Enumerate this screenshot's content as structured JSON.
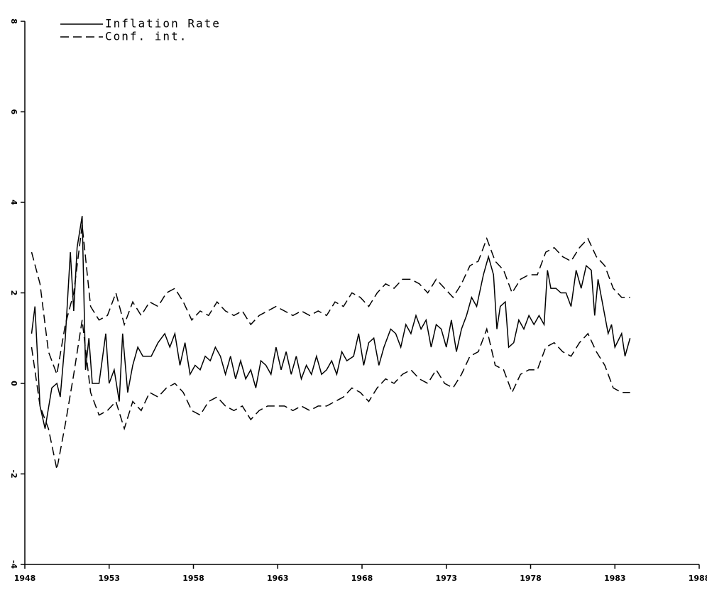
{
  "chart_data": {
    "type": "line",
    "xlim": [
      1948,
      1988
    ],
    "xticks": [
      1948,
      1953,
      1958,
      1963,
      1968,
      1973,
      1978,
      1983,
      1988
    ],
    "ylim": [
      -4,
      8
    ],
    "yticks": [
      -4,
      -2,
      0,
      2,
      4,
      6,
      8
    ],
    "legend": "top-left",
    "series": [
      {
        "name": "Inflation Rate",
        "color": "#000000",
        "line_style": "solid",
        "x": [
          1948.4,
          1948.6,
          1948.9,
          1949.2,
          1949.6,
          1949.9,
          1950.1,
          1950.4,
          1950.7,
          1950.9,
          1951.1,
          1951.4,
          1951.6,
          1951.8,
          1952.0,
          1952.4,
          1952.8,
          1953.0,
          1953.3,
          1953.6,
          1953.8,
          1954.1,
          1954.4,
          1954.7,
          1955.0,
          1955.5,
          1955.9,
          1956.3,
          1956.6,
          1956.9,
          1957.2,
          1957.5,
          1957.8,
          1958.1,
          1958.4,
          1958.7,
          1959.0,
          1959.3,
          1959.6,
          1959.9,
          1960.2,
          1960.5,
          1960.8,
          1961.1,
          1961.4,
          1961.7,
          1962.0,
          1962.3,
          1962.6,
          1962.9,
          1963.2,
          1963.5,
          1963.8,
          1964.1,
          1964.4,
          1964.7,
          1965.0,
          1965.3,
          1965.6,
          1965.9,
          1966.2,
          1966.5,
          1966.8,
          1967.1,
          1967.5,
          1967.8,
          1968.1,
          1968.4,
          1968.7,
          1969.0,
          1969.3,
          1969.7,
          1970.0,
          1970.3,
          1970.6,
          1970.9,
          1971.2,
          1971.5,
          1971.8,
          1972.1,
          1972.4,
          1972.7,
          1973.0,
          1973.3,
          1973.6,
          1973.9,
          1974.2,
          1974.5,
          1974.8,
          1975.2,
          1975.5,
          1975.8,
          1976.0,
          1976.2,
          1976.5,
          1976.7,
          1977.0,
          1977.3,
          1977.6,
          1977.9,
          1978.2,
          1978.5,
          1978.8,
          1979.0,
          1979.2,
          1979.5,
          1979.8,
          1980.1,
          1980.4,
          1980.7,
          1981.0,
          1981.3,
          1981.6,
          1981.8,
          1982.0,
          1982.3,
          1982.6,
          1982.8,
          1983.0,
          1983.4,
          1983.6,
          1983.9
        ],
        "values": [
          1.1,
          1.7,
          -0.5,
          -1.0,
          -0.1,
          0.0,
          -0.3,
          1.0,
          2.9,
          1.6,
          3.0,
          3.7,
          0.3,
          1.0,
          0.0,
          0.0,
          1.1,
          0.0,
          0.3,
          -0.4,
          1.1,
          -0.2,
          0.4,
          0.8,
          0.6,
          0.6,
          0.9,
          1.1,
          0.8,
          1.1,
          0.4,
          0.9,
          0.2,
          0.4,
          0.3,
          0.6,
          0.5,
          0.8,
          0.6,
          0.2,
          0.6,
          0.1,
          0.5,
          0.1,
          0.3,
          -0.1,
          0.5,
          0.4,
          0.2,
          0.8,
          0.3,
          0.7,
          0.2,
          0.6,
          0.1,
          0.4,
          0.2,
          0.6,
          0.2,
          0.3,
          0.5,
          0.2,
          0.7,
          0.5,
          0.6,
          1.1,
          0.4,
          0.9,
          1.0,
          0.4,
          0.8,
          1.2,
          1.1,
          0.8,
          1.3,
          1.1,
          1.5,
          1.2,
          1.4,
          0.8,
          1.3,
          1.2,
          0.8,
          1.4,
          0.7,
          1.2,
          1.5,
          1.9,
          1.7,
          2.4,
          2.8,
          2.4,
          1.2,
          1.7,
          1.8,
          0.8,
          0.9,
          1.4,
          1.2,
          1.5,
          1.3,
          1.5,
          1.3,
          2.5,
          2.1,
          2.1,
          2.0,
          2.0,
          1.7,
          2.5,
          2.1,
          2.6,
          2.5,
          1.5,
          2.3,
          1.7,
          1.1,
          1.3,
          0.8,
          1.1,
          0.6,
          1.0
        ]
      },
      {
        "name": "Conf. int.",
        "color": "#000000",
        "line_style": "dashed",
        "x": [
          1948.4,
          1948.9,
          1949.4,
          1949.9,
          1950.4,
          1950.9,
          1951.4,
          1951.9,
          1952.4,
          1952.9,
          1953.4,
          1953.9,
          1954.4,
          1954.9,
          1955.4,
          1955.9,
          1956.4,
          1956.9,
          1957.4,
          1957.9,
          1958.4,
          1958.9,
          1959.4,
          1959.9,
          1960.4,
          1960.9,
          1961.4,
          1961.9,
          1962.4,
          1962.9,
          1963.4,
          1963.9,
          1964.4,
          1964.9,
          1965.4,
          1965.9,
          1966.4,
          1966.9,
          1967.4,
          1967.9,
          1968.4,
          1968.9,
          1969.4,
          1969.9,
          1970.4,
          1970.9,
          1971.4,
          1971.9,
          1972.4,
          1972.9,
          1973.4,
          1973.9,
          1974.4,
          1974.9,
          1975.4,
          1975.9,
          1976.4,
          1976.9,
          1977.4,
          1977.9,
          1978.4,
          1978.9,
          1979.4,
          1979.9,
          1980.4,
          1980.9,
          1981.4,
          1981.9,
          1982.4,
          1982.9,
          1983.4,
          1983.9
        ],
        "values": [
          2.9,
          2.2,
          0.7,
          0.2,
          1.3,
          2.0,
          3.5,
          1.7,
          1.4,
          1.5,
          2.0,
          1.3,
          1.8,
          1.5,
          1.8,
          1.7,
          2.0,
          2.1,
          1.8,
          1.4,
          1.6,
          1.5,
          1.8,
          1.6,
          1.5,
          1.6,
          1.3,
          1.5,
          1.6,
          1.7,
          1.6,
          1.5,
          1.6,
          1.5,
          1.6,
          1.5,
          1.8,
          1.7,
          2.0,
          1.9,
          1.7,
          2.0,
          2.2,
          2.1,
          2.3,
          2.3,
          2.2,
          2.0,
          2.3,
          2.1,
          1.9,
          2.2,
          2.6,
          2.7,
          3.2,
          2.7,
          2.5,
          2.0,
          2.3,
          2.4,
          2.4,
          2.9,
          3.0,
          2.8,
          2.7,
          3.0,
          3.2,
          2.8,
          2.6,
          2.1,
          1.9,
          1.9
        ],
        "lower": [
          0.8,
          -0.5,
          -1.0,
          -1.9,
          -0.9,
          0.2,
          1.4,
          -0.2,
          -0.7,
          -0.6,
          -0.4,
          -1.0,
          -0.4,
          -0.6,
          -0.2,
          -0.3,
          -0.1,
          0.0,
          -0.2,
          -0.6,
          -0.7,
          -0.4,
          -0.3,
          -0.5,
          -0.6,
          -0.5,
          -0.8,
          -0.6,
          -0.5,
          -0.5,
          -0.5,
          -0.6,
          -0.5,
          -0.6,
          -0.5,
          -0.5,
          -0.4,
          -0.3,
          -0.1,
          -0.2,
          -0.4,
          -0.1,
          0.1,
          0.0,
          0.2,
          0.3,
          0.1,
          0.0,
          0.3,
          0.0,
          -0.1,
          0.2,
          0.6,
          0.7,
          1.2,
          0.4,
          0.3,
          -0.2,
          0.2,
          0.3,
          0.3,
          0.8,
          0.9,
          0.7,
          0.6,
          0.9,
          1.1,
          0.7,
          0.4,
          -0.1,
          -0.2,
          -0.2
        ]
      }
    ]
  }
}
